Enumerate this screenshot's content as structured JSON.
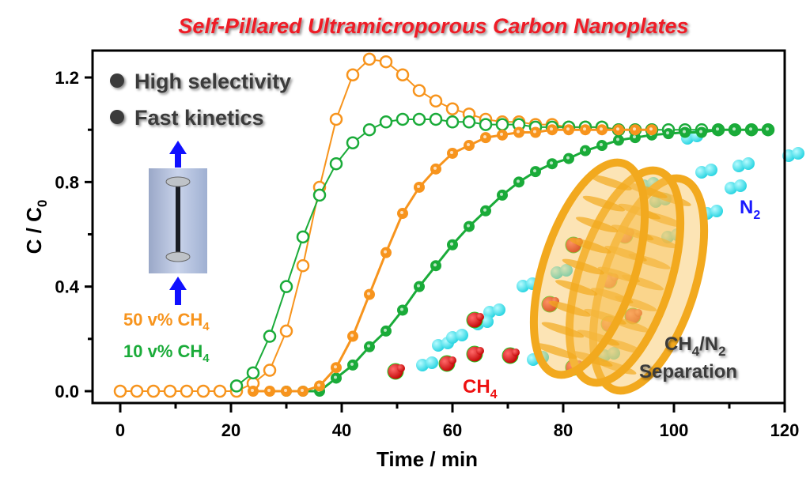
{
  "colors": {
    "orange": "#f7941d",
    "green": "#1aab39",
    "title": "#ee1c25",
    "n2": "#1a1aff",
    "ch4": "#ee1111",
    "text_dark": "#3a3a3a",
    "n2_molecule": "#3fe3ee",
    "plate": "#f2a91e"
  },
  "chart_data": {
    "type": "line",
    "title": "Self-Pillared Ultramicroporous Carbon Nanoplates",
    "xlabel": "Time / min",
    "ylabel": "C / C",
    "ylabel_sub": "0",
    "xlim": [
      0,
      120
    ],
    "ylim": [
      0,
      1.3
    ],
    "xticks": [
      "0",
      "20",
      "40",
      "60",
      "80",
      "100",
      "120"
    ],
    "xtick_values": [
      0,
      20,
      40,
      60,
      80,
      100,
      120
    ],
    "yticks": [
      "0.0",
      "0.4",
      "0.8",
      "1.2"
    ],
    "ytick_values": [
      0,
      0.4,
      0.8,
      1.2
    ],
    "grid": false,
    "series": [
      {
        "name": "50 v% CH4 - N2 (open)",
        "color": "orange",
        "marker": "open",
        "x": [
          0,
          3,
          6,
          9,
          12,
          15,
          18,
          21,
          24,
          27,
          30,
          33,
          36,
          39,
          42,
          45,
          48,
          51,
          54,
          57,
          60,
          63,
          66,
          69,
          72,
          75,
          78,
          81,
          84,
          87,
          90,
          93,
          96
        ],
        "y": [
          0,
          0,
          0,
          0,
          0,
          0,
          0,
          0,
          0.03,
          0.08,
          0.23,
          0.48,
          0.78,
          1.04,
          1.21,
          1.27,
          1.26,
          1.21,
          1.15,
          1.11,
          1.08,
          1.06,
          1.04,
          1.03,
          1.03,
          1.02,
          1.02,
          1.01,
          1.01,
          1.01,
          1.0,
          1.0,
          1.0
        ]
      },
      {
        "name": "10 v% CH4 - N2 (open)",
        "color": "green",
        "marker": "open",
        "x": [
          21,
          24,
          27,
          30,
          33,
          36,
          39,
          42,
          45,
          48,
          51,
          54,
          57,
          60,
          63,
          66,
          69,
          72,
          75,
          78,
          81,
          84,
          87,
          90,
          93,
          96,
          99,
          102,
          105,
          108,
          111,
          114,
          117
        ],
        "y": [
          0.02,
          0.07,
          0.21,
          0.4,
          0.59,
          0.75,
          0.87,
          0.95,
          1.0,
          1.03,
          1.04,
          1.04,
          1.04,
          1.03,
          1.03,
          1.02,
          1.02,
          1.02,
          1.01,
          1.01,
          1.01,
          1.01,
          1.01,
          1.0,
          1.0,
          1.0,
          1.0,
          1.0,
          1.0,
          1.0,
          1.0,
          1.0,
          1.0
        ]
      },
      {
        "name": "10 v% CH4 - CH4 (filled)",
        "color": "green",
        "marker": "filled",
        "x": [
          30,
          33,
          36,
          39,
          42,
          45,
          48,
          51,
          54,
          57,
          60,
          63,
          66,
          69,
          72,
          75,
          78,
          81,
          84,
          87,
          90,
          93,
          96,
          99,
          102,
          105,
          108,
          111,
          114,
          117
        ],
        "y": [
          0,
          0,
          0,
          0.05,
          0.1,
          0.17,
          0.23,
          0.31,
          0.4,
          0.48,
          0.56,
          0.63,
          0.69,
          0.75,
          0.8,
          0.84,
          0.87,
          0.89,
          0.92,
          0.94,
          0.96,
          0.97,
          0.98,
          0.985,
          0.99,
          0.99,
          1.0,
          1.0,
          1.0,
          1.0
        ]
      },
      {
        "name": "50 v% CH4 - CH4 (filled)",
        "color": "orange",
        "marker": "filled",
        "x": [
          24,
          27,
          30,
          33,
          36,
          39,
          42,
          45,
          48,
          51,
          54,
          57,
          60,
          63,
          66,
          69,
          72,
          75,
          78,
          81,
          84,
          87,
          90,
          93,
          96
        ],
        "y": [
          0,
          0,
          0,
          0,
          0.02,
          0.09,
          0.21,
          0.37,
          0.53,
          0.68,
          0.78,
          0.85,
          0.91,
          0.94,
          0.97,
          0.98,
          0.99,
          0.99,
          1.0,
          1.0,
          1.0,
          1.0,
          1.0,
          1.0,
          1.0
        ]
      }
    ]
  },
  "features": [
    "High selectivity",
    "Fast kinetics"
  ],
  "legend": [
    {
      "text": "50 v% CH",
      "sub": "4",
      "color": "orange"
    },
    {
      "text": "10 v% CH",
      "sub": "4",
      "color": "green"
    }
  ],
  "annotations": {
    "n2": {
      "text": "N",
      "sub": "2"
    },
    "ch4": {
      "text": "CH",
      "sub": "4"
    },
    "separation_line1": {
      "a": "CH",
      "a_sub": "4",
      "b": "/N",
      "b_sub": "2"
    },
    "separation_line2": "Separation"
  }
}
